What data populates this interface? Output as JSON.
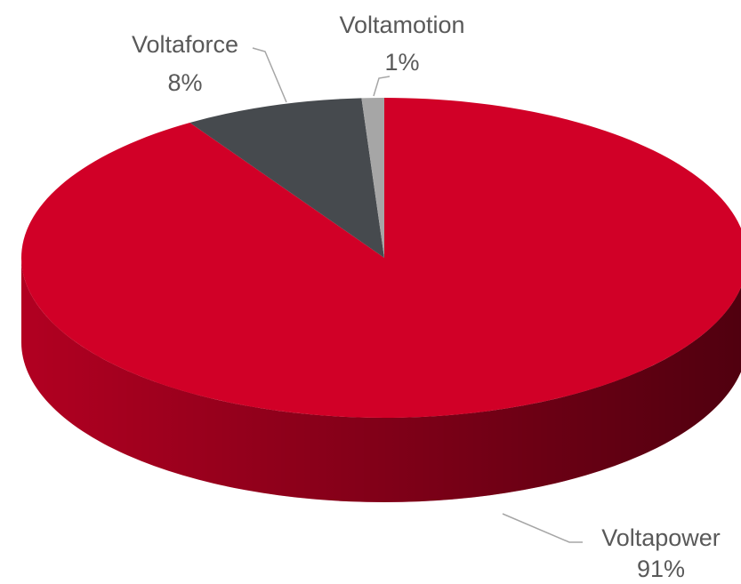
{
  "chart_data": {
    "type": "pie",
    "categories": [
      "Voltapower",
      "Voltaforce",
      "Voltamotion"
    ],
    "values": [
      91,
      8,
      1
    ],
    "value_labels": [
      "91%",
      "8%",
      "1%"
    ],
    "colors": [
      "#d10027",
      "#464a4e",
      "#a6a6a6"
    ]
  }
}
